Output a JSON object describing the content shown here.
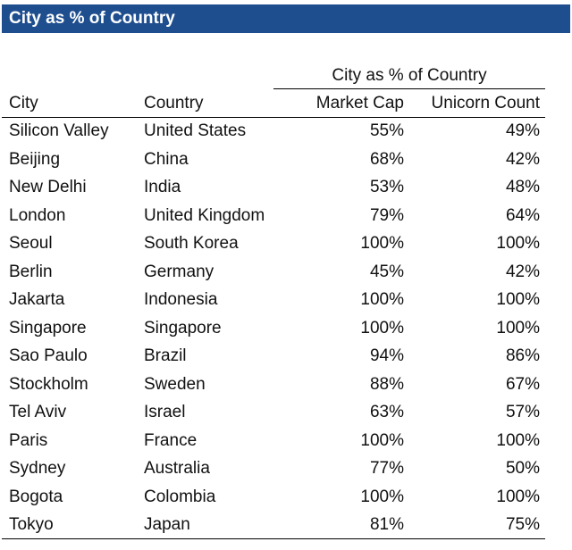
{
  "title": "City as % of Country",
  "chart_data": {
    "type": "table",
    "title": "City as % of Country",
    "group_header": "City as % of Country",
    "columns": [
      "City",
      "Country",
      "Market Cap",
      "Unicorn Count"
    ],
    "rows": [
      [
        "Silicon Valley",
        "United States",
        "55%",
        "49%"
      ],
      [
        "Beijing",
        "China",
        "68%",
        "42%"
      ],
      [
        "New Delhi",
        "India",
        "53%",
        "48%"
      ],
      [
        "London",
        "United Kingdom",
        "79%",
        "64%"
      ],
      [
        "Seoul",
        "South Korea",
        "100%",
        "100%"
      ],
      [
        "Berlin",
        "Germany",
        "45%",
        "42%"
      ],
      [
        "Jakarta",
        "Indonesia",
        "100%",
        "100%"
      ],
      [
        "Singapore",
        "Singapore",
        "100%",
        "100%"
      ],
      [
        "Sao Paulo",
        "Brazil",
        "94%",
        "86%"
      ],
      [
        "Stockholm",
        "Sweden",
        "88%",
        "67%"
      ],
      [
        "Tel Aviv",
        "Israel",
        "63%",
        "57%"
      ],
      [
        "Paris",
        "France",
        "100%",
        "100%"
      ],
      [
        "Sydney",
        "Australia",
        "77%",
        "50%"
      ],
      [
        "Bogota",
        "Colombia",
        "100%",
        "100%"
      ],
      [
        "Tokyo",
        "Japan",
        "81%",
        "75%"
      ]
    ]
  },
  "colors": {
    "title_bar_background": "#1f4e8f",
    "title_text": "#ffffff",
    "rule": "#000000",
    "text": "#111111"
  }
}
